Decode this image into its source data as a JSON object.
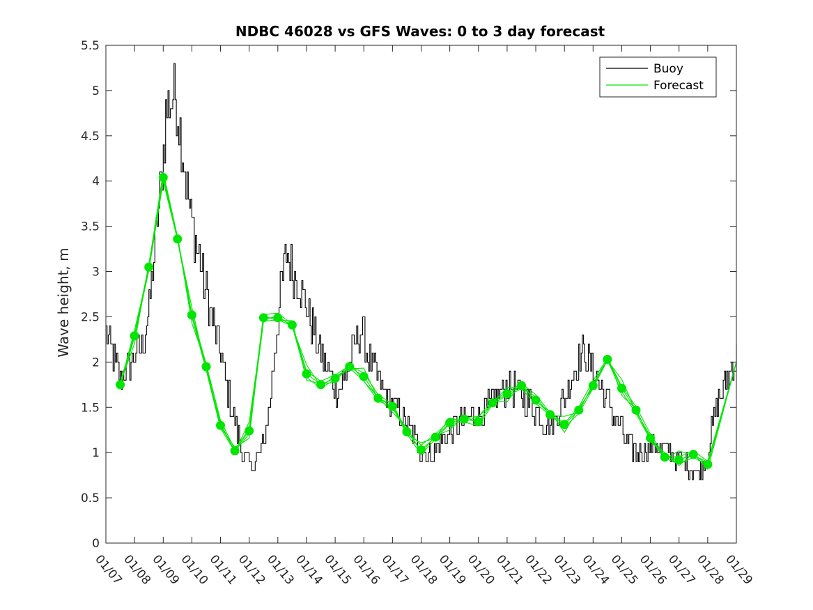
{
  "chart_data": {
    "type": "line",
    "title": "NDBC 46028 vs GFS Waves: 0 to 3 day forecast",
    "xlabel": "",
    "ylabel": "Wave height, m",
    "xlim": [
      0,
      22
    ],
    "ylim": [
      0,
      5.5
    ],
    "x_tick_labels": [
      "01/07",
      "01/08",
      "01/09",
      "01/10",
      "01/11",
      "01/12",
      "01/13",
      "01/14",
      "01/15",
      "01/16",
      "01/17",
      "01/18",
      "01/19",
      "01/20",
      "01/21",
      "01/22",
      "01/23",
      "01/24",
      "01/25",
      "01/26",
      "01/27",
      "01/28",
      "01/29"
    ],
    "y_ticks": [
      0,
      0.5,
      1,
      1.5,
      2,
      2.5,
      3,
      3.5,
      4,
      4.5,
      5,
      5.5
    ],
    "grid": false,
    "legend": {
      "position": "top-right",
      "entries": [
        "Buoy",
        "Forecast"
      ]
    },
    "colors": {
      "buoy": "#000000",
      "forecast": "#00e600",
      "axis": "#262626"
    },
    "series": [
      {
        "name": "Buoy",
        "x": [
          0,
          0.3,
          0.5,
          0.7,
          1.0,
          1.3,
          1.5,
          1.7,
          1.9,
          2.0,
          2.1,
          2.3,
          2.4,
          2.6,
          2.8,
          3.0,
          3.3,
          3.6,
          4.0,
          4.3,
          4.6,
          4.8,
          5.0,
          5.2,
          5.5,
          5.7,
          5.9,
          6.1,
          6.3,
          6.5,
          6.7,
          7.0,
          7.3,
          7.6,
          8.0,
          8.3,
          8.6,
          8.9,
          9.2,
          9.5,
          9.8,
          10.1,
          10.4,
          10.7,
          11.0,
          11.3,
          11.6,
          11.9,
          12.2,
          12.5,
          12.8,
          13.1,
          13.4,
          13.7,
          14.0,
          14.3,
          14.6,
          14.9,
          15.2,
          15.5,
          15.8,
          16.1,
          16.4,
          16.7,
          17.0,
          17.3,
          17.6,
          17.9,
          18.2,
          18.5,
          18.8,
          19.1,
          19.4,
          19.7,
          20.0,
          20.3,
          20.6,
          20.9,
          21.1,
          21.3,
          21.6,
          22.0
        ],
        "values": [
          2.3,
          2.0,
          1.8,
          1.9,
          2.1,
          2.2,
          2.6,
          3.3,
          3.9,
          4.3,
          4.8,
          4.9,
          5.0,
          4.5,
          4.0,
          3.5,
          3.1,
          2.6,
          2.1,
          1.6,
          1.2,
          0.95,
          0.85,
          0.9,
          1.1,
          1.5,
          2.2,
          2.8,
          3.2,
          3.0,
          2.9,
          2.6,
          2.3,
          2.0,
          1.7,
          1.8,
          2.1,
          2.4,
          2.0,
          1.8,
          1.6,
          1.5,
          1.35,
          1.2,
          1.0,
          0.95,
          1.05,
          1.2,
          1.3,
          1.35,
          1.4,
          1.45,
          1.55,
          1.65,
          1.7,
          1.7,
          1.6,
          1.5,
          1.35,
          1.3,
          1.45,
          1.7,
          2.0,
          2.1,
          1.9,
          1.7,
          1.5,
          1.3,
          1.1,
          1.0,
          1.05,
          1.1,
          1.05,
          1.0,
          0.9,
          0.85,
          0.75,
          0.9,
          1.2,
          1.5,
          1.8,
          2.05
        ]
      },
      {
        "name": "Forecast",
        "x": [
          0.5,
          1.0,
          1.5,
          2.0,
          2.5,
          3.0,
          3.5,
          4.0,
          4.5,
          5.0,
          5.5,
          6.0,
          6.5,
          7.0,
          7.5,
          8.0,
          8.5,
          9.0,
          9.5,
          10.0,
          10.5,
          11.0,
          11.5,
          12.0,
          12.5,
          13.0,
          13.5,
          14.0,
          14.5,
          15.0,
          15.5,
          16.0,
          16.5,
          17.0,
          17.5,
          18.0,
          18.5,
          19.0,
          19.5,
          20.0,
          20.5,
          21.0
        ],
        "values": [
          1.75,
          2.29,
          3.05,
          4.04,
          3.36,
          2.52,
          1.95,
          1.3,
          1.02,
          1.24,
          2.49,
          2.49,
          2.41,
          1.87,
          1.75,
          1.82,
          1.95,
          1.84,
          1.6,
          1.51,
          1.23,
          1.03,
          1.17,
          1.33,
          1.37,
          1.34,
          1.55,
          1.65,
          1.74,
          1.58,
          1.42,
          1.31,
          1.47,
          1.74,
          2.03,
          1.71,
          1.47,
          1.16,
          0.95,
          0.92,
          0.98,
          0.87
        ]
      }
    ]
  }
}
